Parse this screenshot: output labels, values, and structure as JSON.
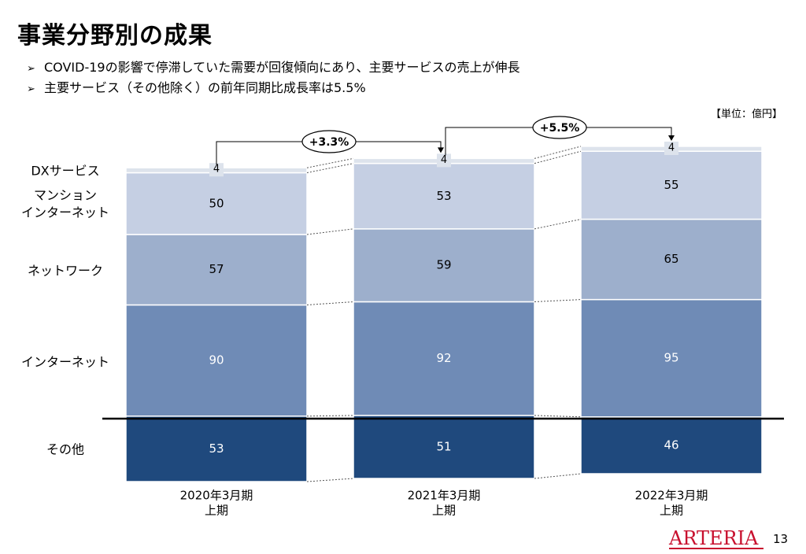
{
  "title": "事業分野別の成果",
  "bullets": [
    "COVID-19の影響で停滞していた需要が回復傾向にあり、主要サービスの売上が伸長",
    "主要サービス（その他除く）の前年同期比成長率は5.5%"
  ],
  "bullet_mark": "➢",
  "unit_label": "【単位：億円】",
  "logo_text": "ARTERIA",
  "page_number": "13",
  "colors": {
    "dx": "#dde3ec",
    "mansion": "#c5cfe3",
    "network": "#9dafcc",
    "internet": "#6f8bb6",
    "other": "#1f497d"
  },
  "chart_data": {
    "type": "bar",
    "stacked": true,
    "categories": [
      "2020年3月期\n上期",
      "2021年3月期\n上期",
      "2022年3月期\n上期"
    ],
    "series": [
      {
        "name": "その他",
        "values": [
          53,
          51,
          46
        ]
      },
      {
        "name": "インターネット",
        "values": [
          90,
          92,
          95
        ]
      },
      {
        "name": "ネットワーク",
        "values": [
          57,
          59,
          65
        ]
      },
      {
        "name": "マンション\nインターネット",
        "values": [
          50,
          53,
          55
        ]
      },
      {
        "name": "DXサービス",
        "values": [
          4,
          4,
          4
        ]
      }
    ],
    "growth_annotations": [
      {
        "from": 0,
        "to": 1,
        "label": "+3.3%"
      },
      {
        "from": 1,
        "to": 2,
        "label": "+5.5%"
      }
    ]
  }
}
